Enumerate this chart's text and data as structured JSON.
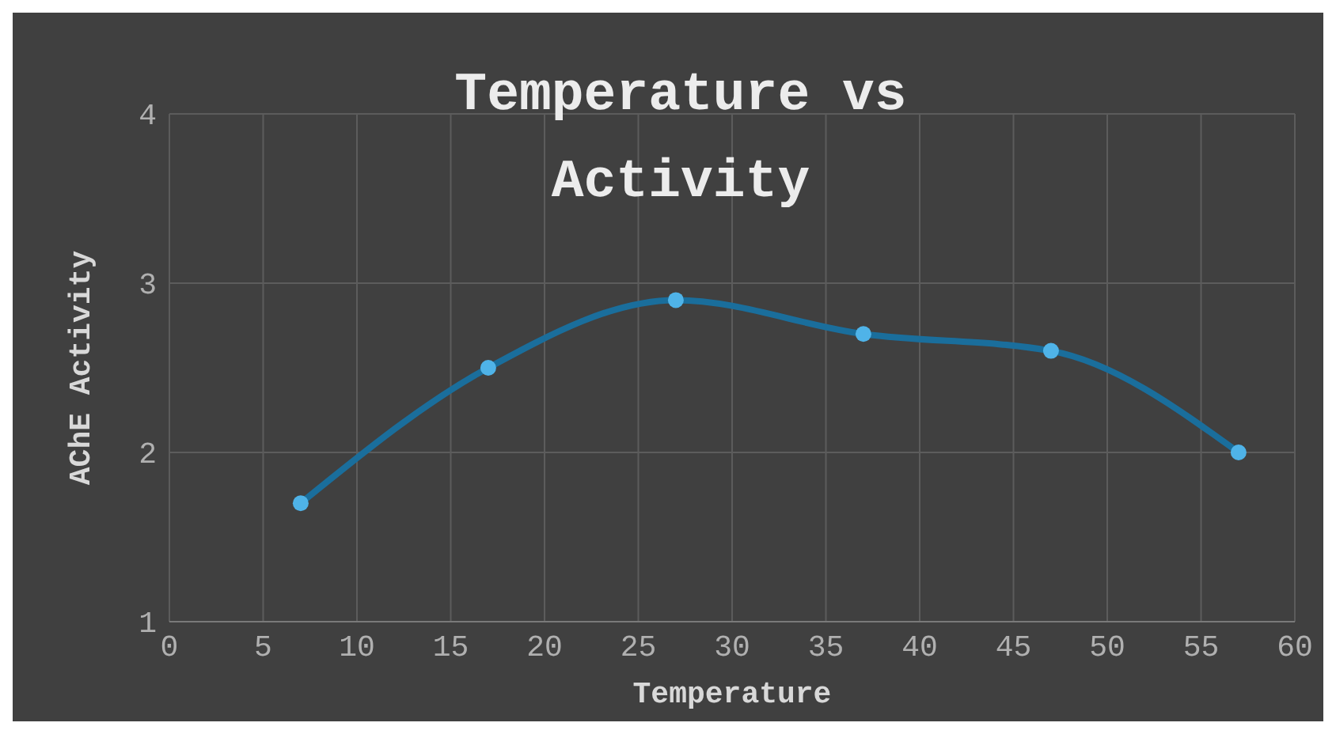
{
  "chart_data": {
    "type": "line",
    "title": "Temperature vs Activity",
    "xlabel": "Temperature",
    "ylabel": "AChE Activity",
    "x": [
      7,
      17,
      27,
      37,
      47,
      57
    ],
    "series": [
      {
        "color": "#1a6e9c",
        "values": [
          1.7,
          2.5,
          2.9,
          2.7,
          2.6,
          2.0
        ]
      }
    ],
    "xlim": [
      0,
      60
    ],
    "xticks": [
      0,
      5,
      10,
      15,
      20,
      25,
      30,
      35,
      40,
      45,
      50,
      55,
      60
    ],
    "ylim": [
      1,
      4
    ],
    "yticks": [
      1,
      2,
      3,
      4
    ],
    "grid": true,
    "marker": "circle",
    "line_style": "solid"
  }
}
